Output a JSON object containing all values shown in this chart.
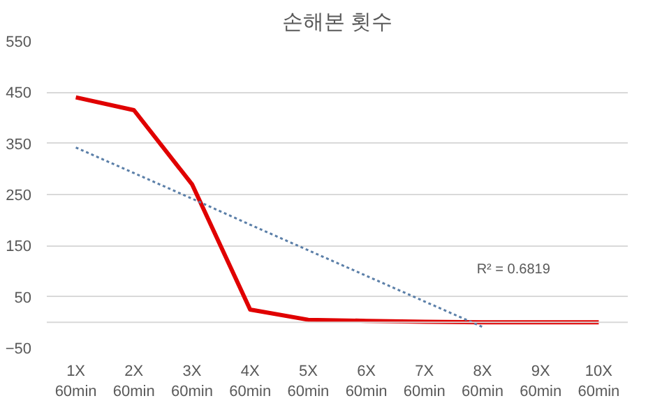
{
  "chart_data": {
    "type": "line",
    "title": "손해본 횟수",
    "categories": [
      "1X\n60min",
      "2X\n60min",
      "3X\n60min",
      "4X\n60min",
      "5X\n60min",
      "6X\n60min",
      "7X\n60min",
      "8X\n60min",
      "9X\n60min",
      "10X\n60min"
    ],
    "series": [
      {
        "color": "#e00000",
        "values": [
          440,
          415,
          270,
          25,
          5,
          3,
          1,
          0,
          0,
          0
        ]
      },
      {
        "color": "#5b7fa8",
        "line_style": "dotted",
        "values": [
          342,
          292,
          242,
          191,
          141,
          91,
          41,
          -9,
          null,
          null
        ]
      }
    ],
    "ylim": [
      -50,
      550
    ],
    "yticks": [
      -50,
      50,
      150,
      250,
      350,
      450,
      550
    ],
    "ref_lines": [
      {
        "axis": "y",
        "value": 0,
        "color": "#d9d9d9"
      }
    ],
    "annotations": [
      "R² = 0.6819"
    ],
    "grid": "y",
    "marker": "none",
    "line_style": "solid"
  }
}
